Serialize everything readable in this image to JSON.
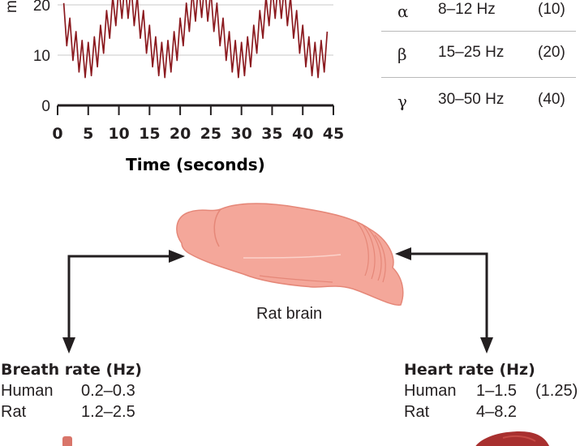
{
  "chart": {
    "y_axis_label_fragment": "mm",
    "x_axis_title": "Time (seconds)",
    "chart_data": {
      "type": "line",
      "title": "",
      "xlabel": "Time (seconds)",
      "ylabel": "mm",
      "xlim": [
        0,
        45
      ],
      "ylim": [
        0,
        25
      ],
      "x_ticks": [
        "0",
        "5",
        "10",
        "15",
        "20",
        "25",
        "30",
        "35",
        "40",
        "45"
      ],
      "y_ticks": [
        "0",
        "10",
        "20"
      ],
      "x_tick_values": [
        0,
        5,
        10,
        15,
        20,
        25,
        30,
        35,
        40,
        45
      ],
      "y_tick_values": [
        0,
        10,
        20
      ],
      "grid": true,
      "line_color": "#8b1a1f",
      "signal": {
        "x_start": 1,
        "x_end": 44,
        "slow_period_s": 12.5,
        "slow_phase_s": 11,
        "mean": 15,
        "slow_amplitude": 6,
        "fast_period_s": 1,
        "fast_amplitude": 3.5
      }
    }
  },
  "bands": [
    {
      "symbol": "α",
      "range": "8–12 Hz",
      "peak": "(10)"
    },
    {
      "symbol": "β",
      "range": "15–25 Hz",
      "peak": "(20)"
    },
    {
      "symbol": "γ",
      "range": "30–50 Hz",
      "peak": "(40)"
    }
  ],
  "brain_label": "Rat brain",
  "breath": {
    "title": "Breath rate (Hz)",
    "rows": [
      {
        "species": "Human",
        "value": "0.2–0.3"
      },
      {
        "species": "Rat",
        "value": "1.2–2.5"
      }
    ]
  },
  "heart": {
    "title": "Heart rate (Hz)",
    "rows": [
      {
        "species": "Human",
        "value": "1–1.5",
        "peak": "(1.25)"
      },
      {
        "species": "Rat",
        "value": "4–8.2",
        "peak": ""
      }
    ]
  },
  "colors": {
    "signal": "#8b1a1f",
    "brain": "#f4a79a",
    "organ": "#a8302f",
    "text": "#231f20"
  }
}
